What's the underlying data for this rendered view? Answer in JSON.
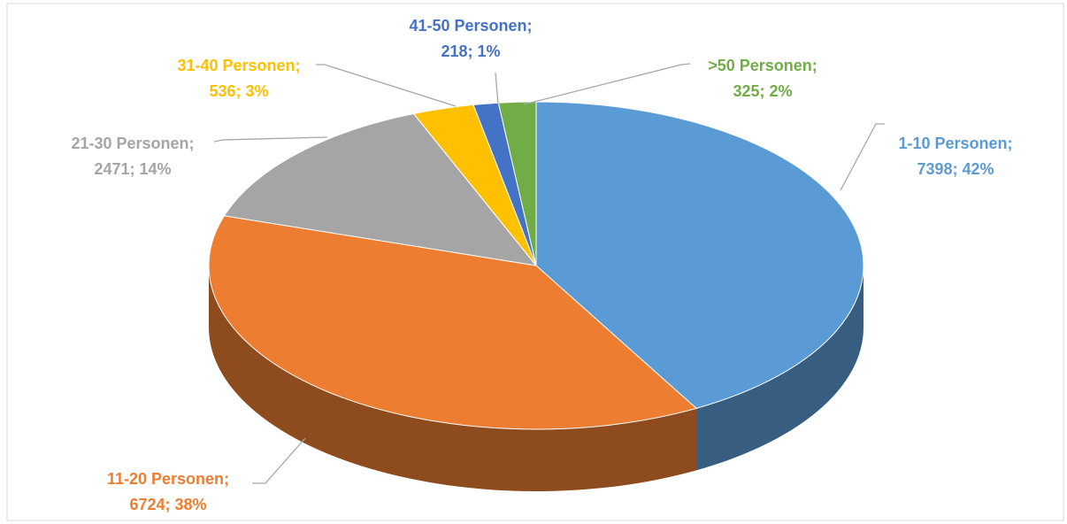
{
  "chart_data": {
    "type": "pie3d",
    "categories": [
      "1-10 Personen;",
      "11-20 Personen;",
      "21-30 Personen;",
      "31-40 Personen;",
      "41-50 Personen;",
      ">50 Personen;"
    ],
    "values": [
      7398,
      6724,
      2471,
      536,
      218,
      325
    ],
    "value_labels": [
      "7398; 42%",
      "6724; 38%",
      "2471; 14%",
      "536; 3%",
      "218; 1%",
      "325; 2%"
    ],
    "colors": [
      "#5b9bd5",
      "#ed7d31",
      "#a5a5a5",
      "#ffc000",
      "#4472c4",
      "#70ad47"
    ]
  }
}
